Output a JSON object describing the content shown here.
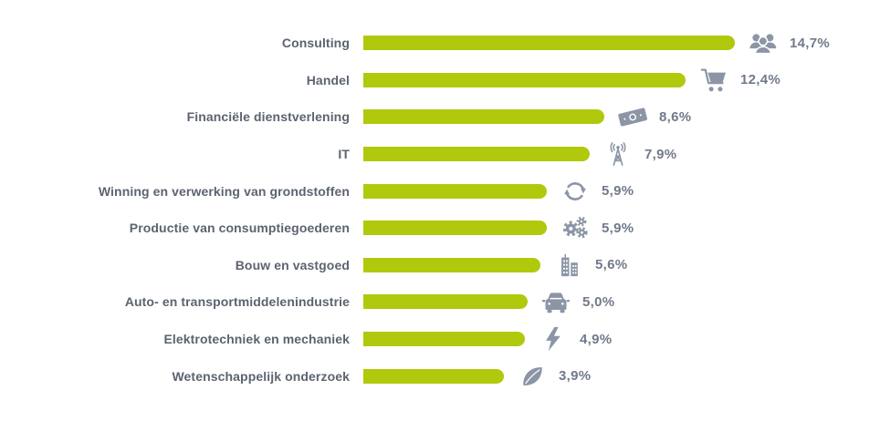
{
  "chart_data": {
    "type": "bar",
    "orientation": "horizontal",
    "title": "",
    "xlabel": "",
    "ylabel": "",
    "unit": "%",
    "grid": false,
    "legend": false,
    "axis_visible": false,
    "categories": [
      "Consulting",
      "Handel",
      "Financiële dienstverlening",
      "IT",
      "Winning en verwerking van grondstoffen",
      "Productie van consumptiegoederen",
      "Bouw en vastgoed",
      "Auto- en transportmiddelenindustrie",
      "Elektrotechniek en mechaniek",
      "Wetenschappelijk onderzoek"
    ],
    "values": [
      14.7,
      12.4,
      8.6,
      7.9,
      5.9,
      5.9,
      5.6,
      5.0,
      4.9,
      3.9
    ],
    "value_labels": [
      "14,7%",
      "12,4%",
      "8,6%",
      "7,9%",
      "5,9%",
      "5,9%",
      "5,6%",
      "5,0%",
      "4,9%",
      "3,9%"
    ],
    "icons": [
      "people-group-icon",
      "shopping-cart-icon",
      "banknote-icon",
      "radio-tower-icon",
      "recycle-icon",
      "gears-icon",
      "buildings-icon",
      "car-icon",
      "lightning-icon",
      "leaf-icon"
    ]
  },
  "colors": {
    "bar": "#b1c90d",
    "category_label": "#5c6370",
    "value_label": "#717a8a",
    "icon": "#8b95a6",
    "background": "#ffffff"
  }
}
